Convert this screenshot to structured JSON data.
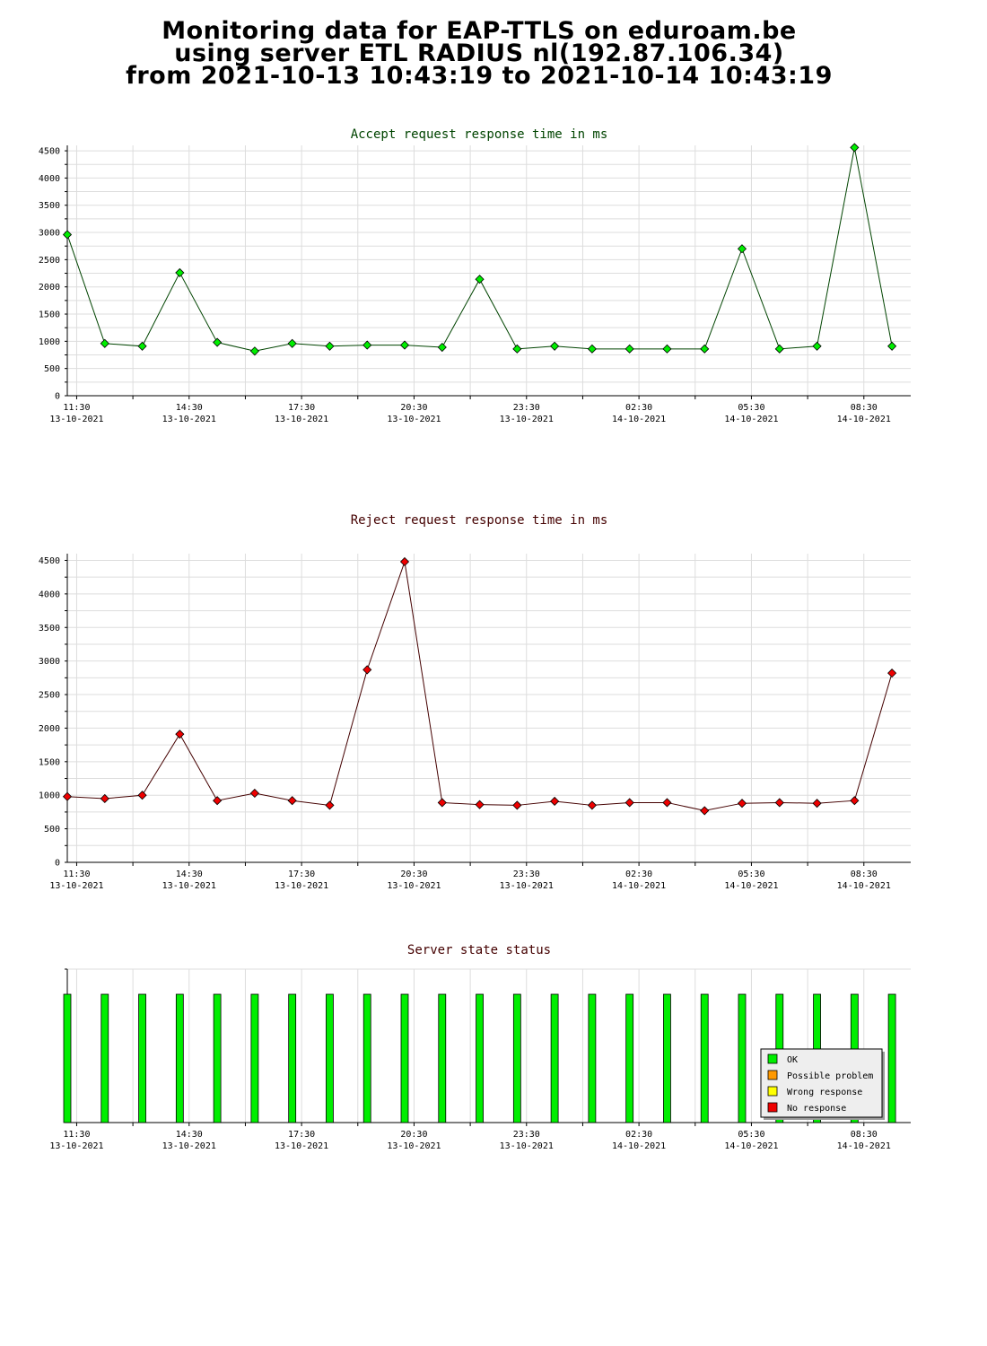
{
  "header": {
    "line1": "Monitoring data for EAP-TTLS on eduroam.be",
    "line2": "using server ETL RADIUS nl(192.87.106.34)",
    "line3": "from 2021-10-13 10:43:19 to 2021-10-14 10:43:19"
  },
  "colors": {
    "accept_title": "#004400",
    "reject_title": "#440000",
    "status_title": "#440000",
    "ok": "#00ee00",
    "possible_problem": "#ff9900",
    "wrong_response": "#ffff00",
    "no_response": "#ee0000",
    "grid": "#dddddd",
    "accept_line": "#004400",
    "reject_line": "#440000"
  },
  "chart_data": [
    {
      "type": "line",
      "title": "Accept request response time in ms",
      "ylim": [
        0,
        4600
      ],
      "yticks": [
        0,
        500,
        1000,
        1500,
        2000,
        2500,
        3000,
        3500,
        4000,
        4500
      ],
      "xlim_hours": [
        11.25,
        33.75
      ],
      "xticks": [
        {
          "time": "11:30",
          "date": "13-10-2021"
        },
        {
          "time": "14:30",
          "date": "13-10-2021"
        },
        {
          "time": "17:30",
          "date": "13-10-2021"
        },
        {
          "time": "20:30",
          "date": "13-10-2021"
        },
        {
          "time": "23:30",
          "date": "13-10-2021"
        },
        {
          "time": "02:30",
          "date": "14-10-2021"
        },
        {
          "time": "05:30",
          "date": "14-10-2021"
        },
        {
          "time": "08:30",
          "date": "14-10-2021"
        }
      ],
      "grid": true,
      "series": [
        {
          "x": [
            "2021-10-13 11:15",
            "2021-10-13 12:15",
            "2021-10-13 13:15",
            "2021-10-13 14:15",
            "2021-10-13 15:15",
            "2021-10-13 16:15",
            "2021-10-13 17:15",
            "2021-10-13 18:15",
            "2021-10-13 19:15",
            "2021-10-13 20:15",
            "2021-10-13 21:15",
            "2021-10-13 22:15",
            "2021-10-13 23:15",
            "2021-10-14 00:15",
            "2021-10-14 01:15",
            "2021-10-14 02:15",
            "2021-10-14 03:15",
            "2021-10-14 04:15",
            "2021-10-14 05:15",
            "2021-10-14 06:15",
            "2021-10-14 07:15",
            "2021-10-14 08:15",
            "2021-10-14 09:15"
          ],
          "values": [
            2960,
            960,
            910,
            2260,
            980,
            820,
            960,
            910,
            930,
            930,
            890,
            2140,
            860,
            910,
            860,
            860,
            860,
            860,
            2700,
            860,
            910,
            4560,
            910
          ]
        }
      ]
    },
    {
      "type": "line",
      "title": "Reject request response time in ms",
      "ylim": [
        0,
        4600
      ],
      "yticks": [
        0,
        500,
        1000,
        1500,
        2000,
        2500,
        3000,
        3500,
        4000,
        4500
      ],
      "xlim_hours": [
        11.25,
        33.75
      ],
      "xticks": [
        {
          "time": "11:30",
          "date": "13-10-2021"
        },
        {
          "time": "14:30",
          "date": "13-10-2021"
        },
        {
          "time": "17:30",
          "date": "13-10-2021"
        },
        {
          "time": "20:30",
          "date": "13-10-2021"
        },
        {
          "time": "23:30",
          "date": "13-10-2021"
        },
        {
          "time": "02:30",
          "date": "14-10-2021"
        },
        {
          "time": "05:30",
          "date": "14-10-2021"
        },
        {
          "time": "08:30",
          "date": "14-10-2021"
        }
      ],
      "grid": true,
      "series": [
        {
          "x": [
            "2021-10-13 11:15",
            "2021-10-13 12:15",
            "2021-10-13 13:15",
            "2021-10-13 14:15",
            "2021-10-13 15:15",
            "2021-10-13 16:15",
            "2021-10-13 17:15",
            "2021-10-13 18:15",
            "2021-10-13 19:15",
            "2021-10-13 20:15",
            "2021-10-13 21:15",
            "2021-10-13 22:15",
            "2021-10-13 23:15",
            "2021-10-14 00:15",
            "2021-10-14 01:15",
            "2021-10-14 02:15",
            "2021-10-14 03:15",
            "2021-10-14 04:15",
            "2021-10-14 05:15",
            "2021-10-14 06:15",
            "2021-10-14 07:15",
            "2021-10-14 08:15",
            "2021-10-14 09:15"
          ],
          "values": [
            980,
            950,
            1000,
            1910,
            920,
            1030,
            920,
            850,
            2870,
            4480,
            890,
            860,
            850,
            910,
            850,
            890,
            890,
            770,
            880,
            890,
            880,
            920,
            2820
          ]
        }
      ]
    },
    {
      "type": "bar",
      "title": "Server state status",
      "xlim_hours": [
        11.25,
        33.75
      ],
      "xticks": [
        {
          "time": "11:30",
          "date": "13-10-2021"
        },
        {
          "time": "14:30",
          "date": "13-10-2021"
        },
        {
          "time": "17:30",
          "date": "13-10-2021"
        },
        {
          "time": "20:30",
          "date": "13-10-2021"
        },
        {
          "time": "23:30",
          "date": "13-10-2021"
        },
        {
          "time": "02:30",
          "date": "14-10-2021"
        },
        {
          "time": "05:30",
          "date": "14-10-2021"
        },
        {
          "time": "08:30",
          "date": "14-10-2021"
        }
      ],
      "legend": {
        "placement": "bottom-right",
        "entries": [
          {
            "label": "OK",
            "color": "#00ee00"
          },
          {
            "label": "Possible problem",
            "color": "#ff9900"
          },
          {
            "label": "Wrong response",
            "color": "#ffff00"
          },
          {
            "label": "No response",
            "color": "#ee0000"
          }
        ]
      },
      "series": [
        {
          "x": [
            "2021-10-13 11:15",
            "2021-10-13 12:15",
            "2021-10-13 13:15",
            "2021-10-13 14:15",
            "2021-10-13 15:15",
            "2021-10-13 16:15",
            "2021-10-13 17:15",
            "2021-10-13 18:15",
            "2021-10-13 19:15",
            "2021-10-13 20:15",
            "2021-10-13 21:15",
            "2021-10-13 22:15",
            "2021-10-13 23:15",
            "2021-10-14 00:15",
            "2021-10-14 01:15",
            "2021-10-14 02:15",
            "2021-10-14 03:15",
            "2021-10-14 04:15",
            "2021-10-14 05:15",
            "2021-10-14 06:15",
            "2021-10-14 07:15",
            "2021-10-14 08:15",
            "2021-10-14 09:15"
          ],
          "status": [
            "OK",
            "OK",
            "OK",
            "OK",
            "OK",
            "OK",
            "OK",
            "OK",
            "OK",
            "OK",
            "OK",
            "OK",
            "OK",
            "OK",
            "OK",
            "OK",
            "OK",
            "OK",
            "OK",
            "OK",
            "OK",
            "OK",
            "OK"
          ]
        }
      ]
    }
  ]
}
